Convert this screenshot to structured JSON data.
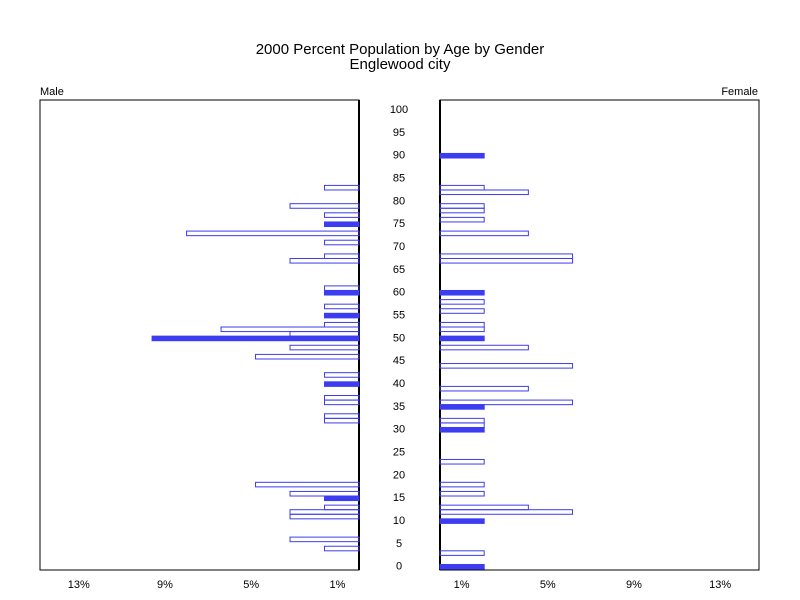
{
  "chart_data": {
    "type": "pyramid",
    "title": "2000 Percent Population by Age by Gender",
    "subtitle": "Englewood city",
    "ages": [
      0,
      1,
      2,
      3,
      4,
      5,
      6,
      7,
      8,
      9,
      10,
      11,
      12,
      13,
      14,
      15,
      16,
      17,
      18,
      19,
      20,
      21,
      22,
      23,
      24,
      25,
      26,
      27,
      28,
      29,
      30,
      31,
      32,
      33,
      34,
      35,
      36,
      37,
      38,
      39,
      40,
      41,
      42,
      43,
      44,
      45,
      46,
      47,
      48,
      49,
      50,
      51,
      52,
      53,
      54,
      55,
      56,
      57,
      58,
      59,
      60,
      61,
      62,
      63,
      64,
      65,
      66,
      67,
      68,
      69,
      70,
      71,
      72,
      73,
      74,
      75,
      76,
      77,
      78,
      79,
      80,
      81,
      82,
      83,
      84,
      85,
      86,
      87,
      88,
      89,
      90,
      91,
      92,
      93,
      94,
      95,
      96,
      97,
      98,
      99,
      100
    ],
    "series": [
      {
        "name": "Male",
        "color": "#3c3cf0",
        "values": [
          0,
          0,
          0,
          0,
          1.6,
          0,
          3.2,
          0,
          0,
          0,
          0,
          3.2,
          3.2,
          1.6,
          0,
          1.6,
          3.2,
          0,
          4.8,
          0,
          0,
          0,
          0,
          0,
          0,
          0,
          0,
          0,
          0,
          0,
          0,
          0,
          1.6,
          1.6,
          0,
          0,
          1.6,
          1.6,
          0,
          0,
          1.6,
          0,
          1.6,
          0,
          0,
          0,
          4.8,
          0,
          3.2,
          0,
          9.6,
          3.2,
          6.4,
          1.6,
          0,
          1.6,
          0,
          1.6,
          0,
          0,
          1.6,
          1.6,
          0,
          0,
          0,
          0,
          0,
          3.2,
          1.6,
          0,
          0,
          1.6,
          0,
          8,
          0,
          1.6,
          0,
          1.6,
          0,
          3.2,
          0,
          0,
          0,
          1.6,
          0,
          0,
          0,
          0,
          0,
          0,
          0,
          0,
          0,
          0,
          0,
          0,
          0,
          0,
          0,
          0,
          0
        ]
      },
      {
        "name": "Female",
        "color": "#3c3cf0",
        "values": [
          2.05,
          0,
          0,
          2.05,
          0,
          0,
          0,
          0,
          0,
          0,
          2.05,
          0,
          6.15,
          4.1,
          0,
          0,
          2.05,
          0,
          2.05,
          0,
          0,
          0,
          0,
          2.05,
          0,
          0,
          0,
          0,
          0,
          0,
          2.05,
          2.05,
          2.05,
          0,
          0,
          2.05,
          6.15,
          0,
          0,
          4.1,
          0,
          0,
          0,
          0,
          6.15,
          0,
          0,
          0,
          4.1,
          0,
          2.05,
          0,
          2.05,
          2.05,
          0,
          0,
          2.05,
          0,
          2.05,
          0,
          2.05,
          0,
          0,
          0,
          0,
          0,
          0,
          6.15,
          6.15,
          0,
          0,
          0,
          0,
          4.1,
          0,
          0,
          2.05,
          0,
          2.05,
          2.05,
          0,
          0,
          4.1,
          2.05,
          0,
          0,
          0,
          0,
          0,
          0,
          2.05,
          0,
          0,
          0,
          0,
          0,
          0,
          0,
          0,
          0,
          0
        ]
      }
    ],
    "xlim": [
      0,
      14.8
    ],
    "xticks": [
      {
        "value": 1,
        "label": "1%"
      },
      {
        "value": 5,
        "label": "5%"
      },
      {
        "value": 9,
        "label": "9%"
      },
      {
        "value": 13,
        "label": "13%"
      }
    ],
    "ylim": [
      -0.7,
      102.2
    ],
    "yticks": [
      0,
      5,
      10,
      15,
      20,
      25,
      30,
      35,
      40,
      45,
      50,
      55,
      60,
      65,
      70,
      75,
      80,
      85,
      90,
      95,
      100
    ]
  }
}
